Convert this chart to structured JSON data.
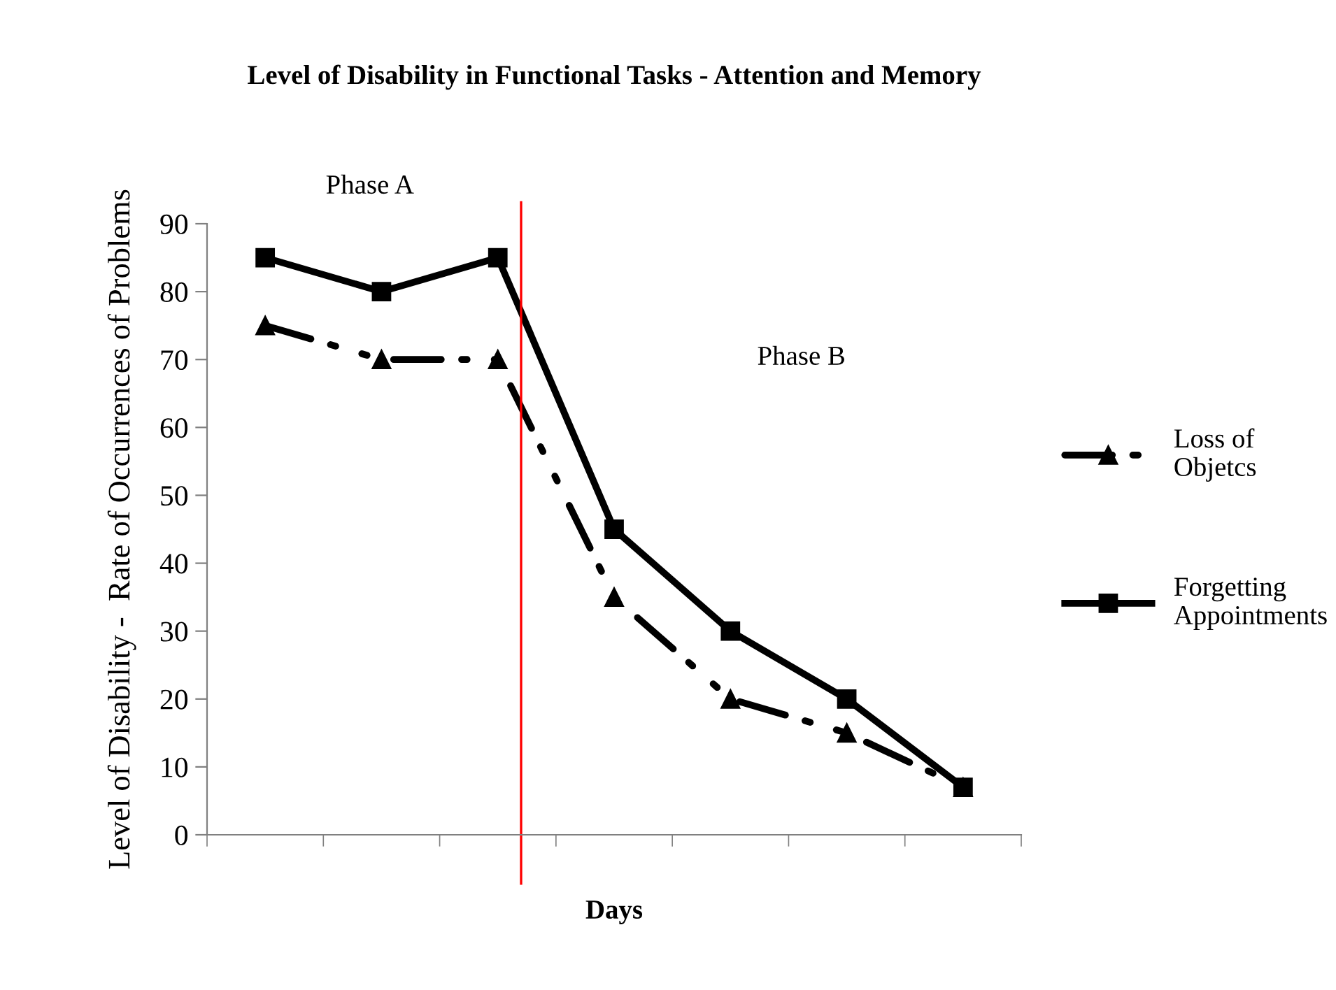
{
  "chart_data": {
    "type": "line",
    "title": "Level of Disability in Functional Tasks - Attention and Memory",
    "xlabel": "Days",
    "ylabel": "Level of Disability -  Rate of Occurrences of Problems",
    "categories": [
      null,
      null,
      null,
      null,
      null,
      null,
      null
    ],
    "series": [
      {
        "name": "Loss of Objetcs",
        "color": "#000000",
        "values": [
          75,
          70,
          70,
          35,
          20,
          15,
          7
        ],
        "marker": "triangle",
        "line_style": "dashed"
      },
      {
        "name": "Forgetting Appointments",
        "color": "#000000",
        "values": [
          85,
          80,
          85,
          45,
          30,
          20,
          7
        ],
        "marker": "square",
        "line_style": "solid"
      }
    ],
    "ylim": [
      0,
      90
    ],
    "yticks": [
      0,
      10,
      20,
      30,
      40,
      50,
      60,
      70,
      80,
      90
    ],
    "grid": false,
    "legend": "right",
    "annotations": [
      "Phase A",
      "Phase B"
    ]
  }
}
